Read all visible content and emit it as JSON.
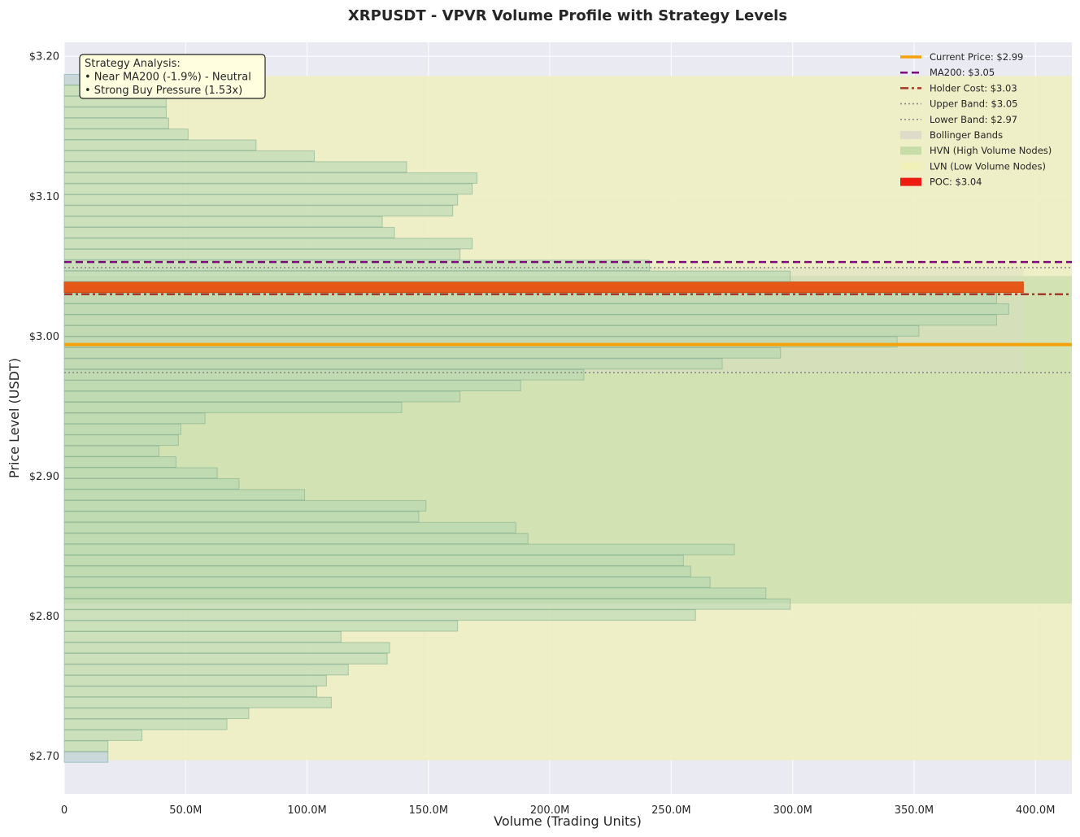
{
  "chart_data": {
    "type": "bar",
    "orientation": "horizontal",
    "title": "XRPUSDT - VPVR Volume Profile with Strategy Levels",
    "xlabel": "Volume (Trading Units)",
    "ylabel": "Price Level (USDT)",
    "xlim": [
      0,
      415000000
    ],
    "ylim": [
      2.673,
      3.21
    ],
    "xticks": [
      0,
      50000000,
      100000000,
      150000000,
      200000000,
      250000000,
      300000000,
      350000000,
      400000000
    ],
    "xtick_labels": [
      "0",
      "50.0M",
      "100.0M",
      "150.0M",
      "200.0M",
      "250.0M",
      "300.0M",
      "350.0M",
      "400.0M"
    ],
    "yticks": [
      2.7,
      2.8,
      2.9,
      3.0,
      3.1,
      3.2
    ],
    "ytick_labels": [
      "$2.70",
      "$2.80",
      "$2.90",
      "$3.00",
      "$3.10",
      "$3.20"
    ],
    "grid": true,
    "legend_position": "top-right",
    "bin_height": 0.0075,
    "price_levels": [
      2.6993,
      2.7071,
      2.7149,
      2.7227,
      2.7305,
      2.7383,
      2.7461,
      2.7539,
      2.7617,
      2.7696,
      2.7774,
      2.7852,
      2.793,
      2.8008,
      2.8086,
      2.8164,
      2.8242,
      2.832,
      2.8398,
      2.8476,
      2.8554,
      2.8632,
      2.871,
      2.8788,
      2.8867,
      2.8945,
      2.9023,
      2.9101,
      2.9179,
      2.9257,
      2.9335,
      2.9413,
      2.9491,
      2.9569,
      2.9647,
      2.9725,
      2.9803,
      2.9881,
      2.9959,
      3.0038,
      3.0116,
      3.0194,
      3.0272,
      3.035,
      3.0428,
      3.0506,
      3.0584,
      3.0662,
      3.074,
      3.0818,
      3.0896,
      3.0974,
      3.1052,
      3.113,
      3.1209,
      3.1287,
      3.1365,
      3.1443,
      3.1521,
      3.1599,
      3.1677,
      3.1755,
      3.1833
    ],
    "volumes": [
      18000000,
      18000000,
      32000000,
      67000000,
      76000000,
      110000000,
      104000000,
      108000000,
      117000000,
      133000000,
      134000000,
      114000000,
      162000000,
      260000000,
      299000000,
      289000000,
      266000000,
      258000000,
      255000000,
      276000000,
      191000000,
      186000000,
      146000000,
      149000000,
      99000000,
      72000000,
      63000000,
      46000000,
      39000000,
      47000000,
      48000000,
      58000000,
      139000000,
      163000000,
      188000000,
      214000000,
      271000000,
      295000000,
      343000000,
      352000000,
      384000000,
      389000000,
      384000000,
      395000000,
      299000000,
      241000000,
      163000000,
      168000000,
      136000000,
      131000000,
      160000000,
      162000000,
      168000000,
      170000000,
      141000000,
      103000000,
      79000000,
      51000000,
      43000000,
      42000000,
      42000000,
      42000000,
      42000000
    ],
    "bar_colors": [
      "#aec7e8",
      "#b0d5b0",
      "#b0d5b0",
      "#b0d5b0",
      "#b0d5b0",
      "#b0d5b0",
      "#b0d5b0",
      "#b0d5b0",
      "#b0d5b0",
      "#b0d5b0",
      "#b0d5b0",
      "#b0d5b0",
      "#b0d5b0",
      "#b0d5b0",
      "#b0d5b0",
      "#b0d5b0",
      "#b0d5b0",
      "#b0d5b0",
      "#b0d5b0",
      "#b0d5b0",
      "#b0d5b0",
      "#b0d5b0",
      "#b0d5b0",
      "#b0d5b0",
      "#b0d5b0",
      "#b0d5b0",
      "#b0d5b0",
      "#b0d5b0",
      "#b0d5b0",
      "#b0d5b0",
      "#b0d5b0",
      "#b0d5b0",
      "#b0d5b0",
      "#b0d5b0",
      "#b0d5b0",
      "#b0d5b0",
      "#b0d5b0",
      "#b0d5b0",
      "#b0d5b0",
      "#b0d5b0",
      "#b0d5b0",
      "#b0d5b0",
      "#b0d5b0",
      "#e8500f",
      "#b0d5b0",
      "#b0d5b0",
      "#b0d5b0",
      "#b0d5b0",
      "#b0d5b0",
      "#b0d5b0",
      "#b0d5b0",
      "#b0d5b0",
      "#b0d5b0",
      "#b0d5b0",
      "#b0d5b0",
      "#b0d5b0",
      "#b0d5b0",
      "#b0d5b0",
      "#b0d5b0",
      "#b0d5b0",
      "#b0d5b0",
      "#b0d5b0",
      "#aec7e8"
    ],
    "regions": {
      "lvn": {
        "price_range": [
          2.697,
          3.186
        ],
        "color": "#eeeec0"
      },
      "hvn": {
        "price_range": [
          2.809,
          3.043
        ],
        "color": "#cfe0b0"
      },
      "bollinger": {
        "price_range": [
          2.974,
          3.049
        ],
        "volume_range": [
          0,
          395000000
        ],
        "color": "#d8dcc0"
      }
    },
    "levels": [
      {
        "name": "Current Price: $2.99",
        "price": 2.994,
        "color": "#f5a20a",
        "style": "solid",
        "width": 4
      },
      {
        "name": "MA200: $3.05",
        "price": 3.053,
        "color": "#800080",
        "style": "dashed",
        "width": 2.5
      },
      {
        "name": "Holder Cost: $3.03",
        "price": 3.03,
        "color": "#a33a2a",
        "style": "dashdot",
        "width": 2.5
      },
      {
        "name": "Upper Band: $3.05",
        "price": 3.049,
        "color": "#8a8a8a",
        "style": "dotted",
        "width": 1.6
      },
      {
        "name": "Lower Band: $2.97",
        "price": 2.974,
        "color": "#8a8a8a",
        "style": "dotted",
        "width": 1.6
      }
    ],
    "legend": [
      {
        "label": "Current Price: $2.99",
        "kind": "line",
        "color": "#f5a20a",
        "style": "solid"
      },
      {
        "label": "MA200: $3.05",
        "kind": "line",
        "color": "#800080",
        "style": "dashed"
      },
      {
        "label": "Holder Cost: $3.03",
        "kind": "line",
        "color": "#a33a2a",
        "style": "dashdot"
      },
      {
        "label": "Upper Band: $3.05",
        "kind": "line",
        "color": "#8a8a8a",
        "style": "dotted"
      },
      {
        "label": "Lower Band: $2.97",
        "kind": "line",
        "color": "#8a8a8a",
        "style": "dotted"
      },
      {
        "label": "Bollinger Bands",
        "kind": "patch",
        "color": "#dcdcc8"
      },
      {
        "label": "HVN (High Volume Nodes)",
        "kind": "patch",
        "color": "#c8dca8"
      },
      {
        "label": "LVN (Low Volume Nodes)",
        "kind": "patch",
        "color": "#f0f0b8"
      },
      {
        "label": "POC: $3.04",
        "kind": "patch",
        "color": "#ee1c10"
      }
    ],
    "annotation": {
      "lines": [
        "Strategy Analysis:",
        "• Near MA200 (-1.9%) - Neutral",
        "• Strong Buy Pressure (1.53x)"
      ]
    }
  }
}
